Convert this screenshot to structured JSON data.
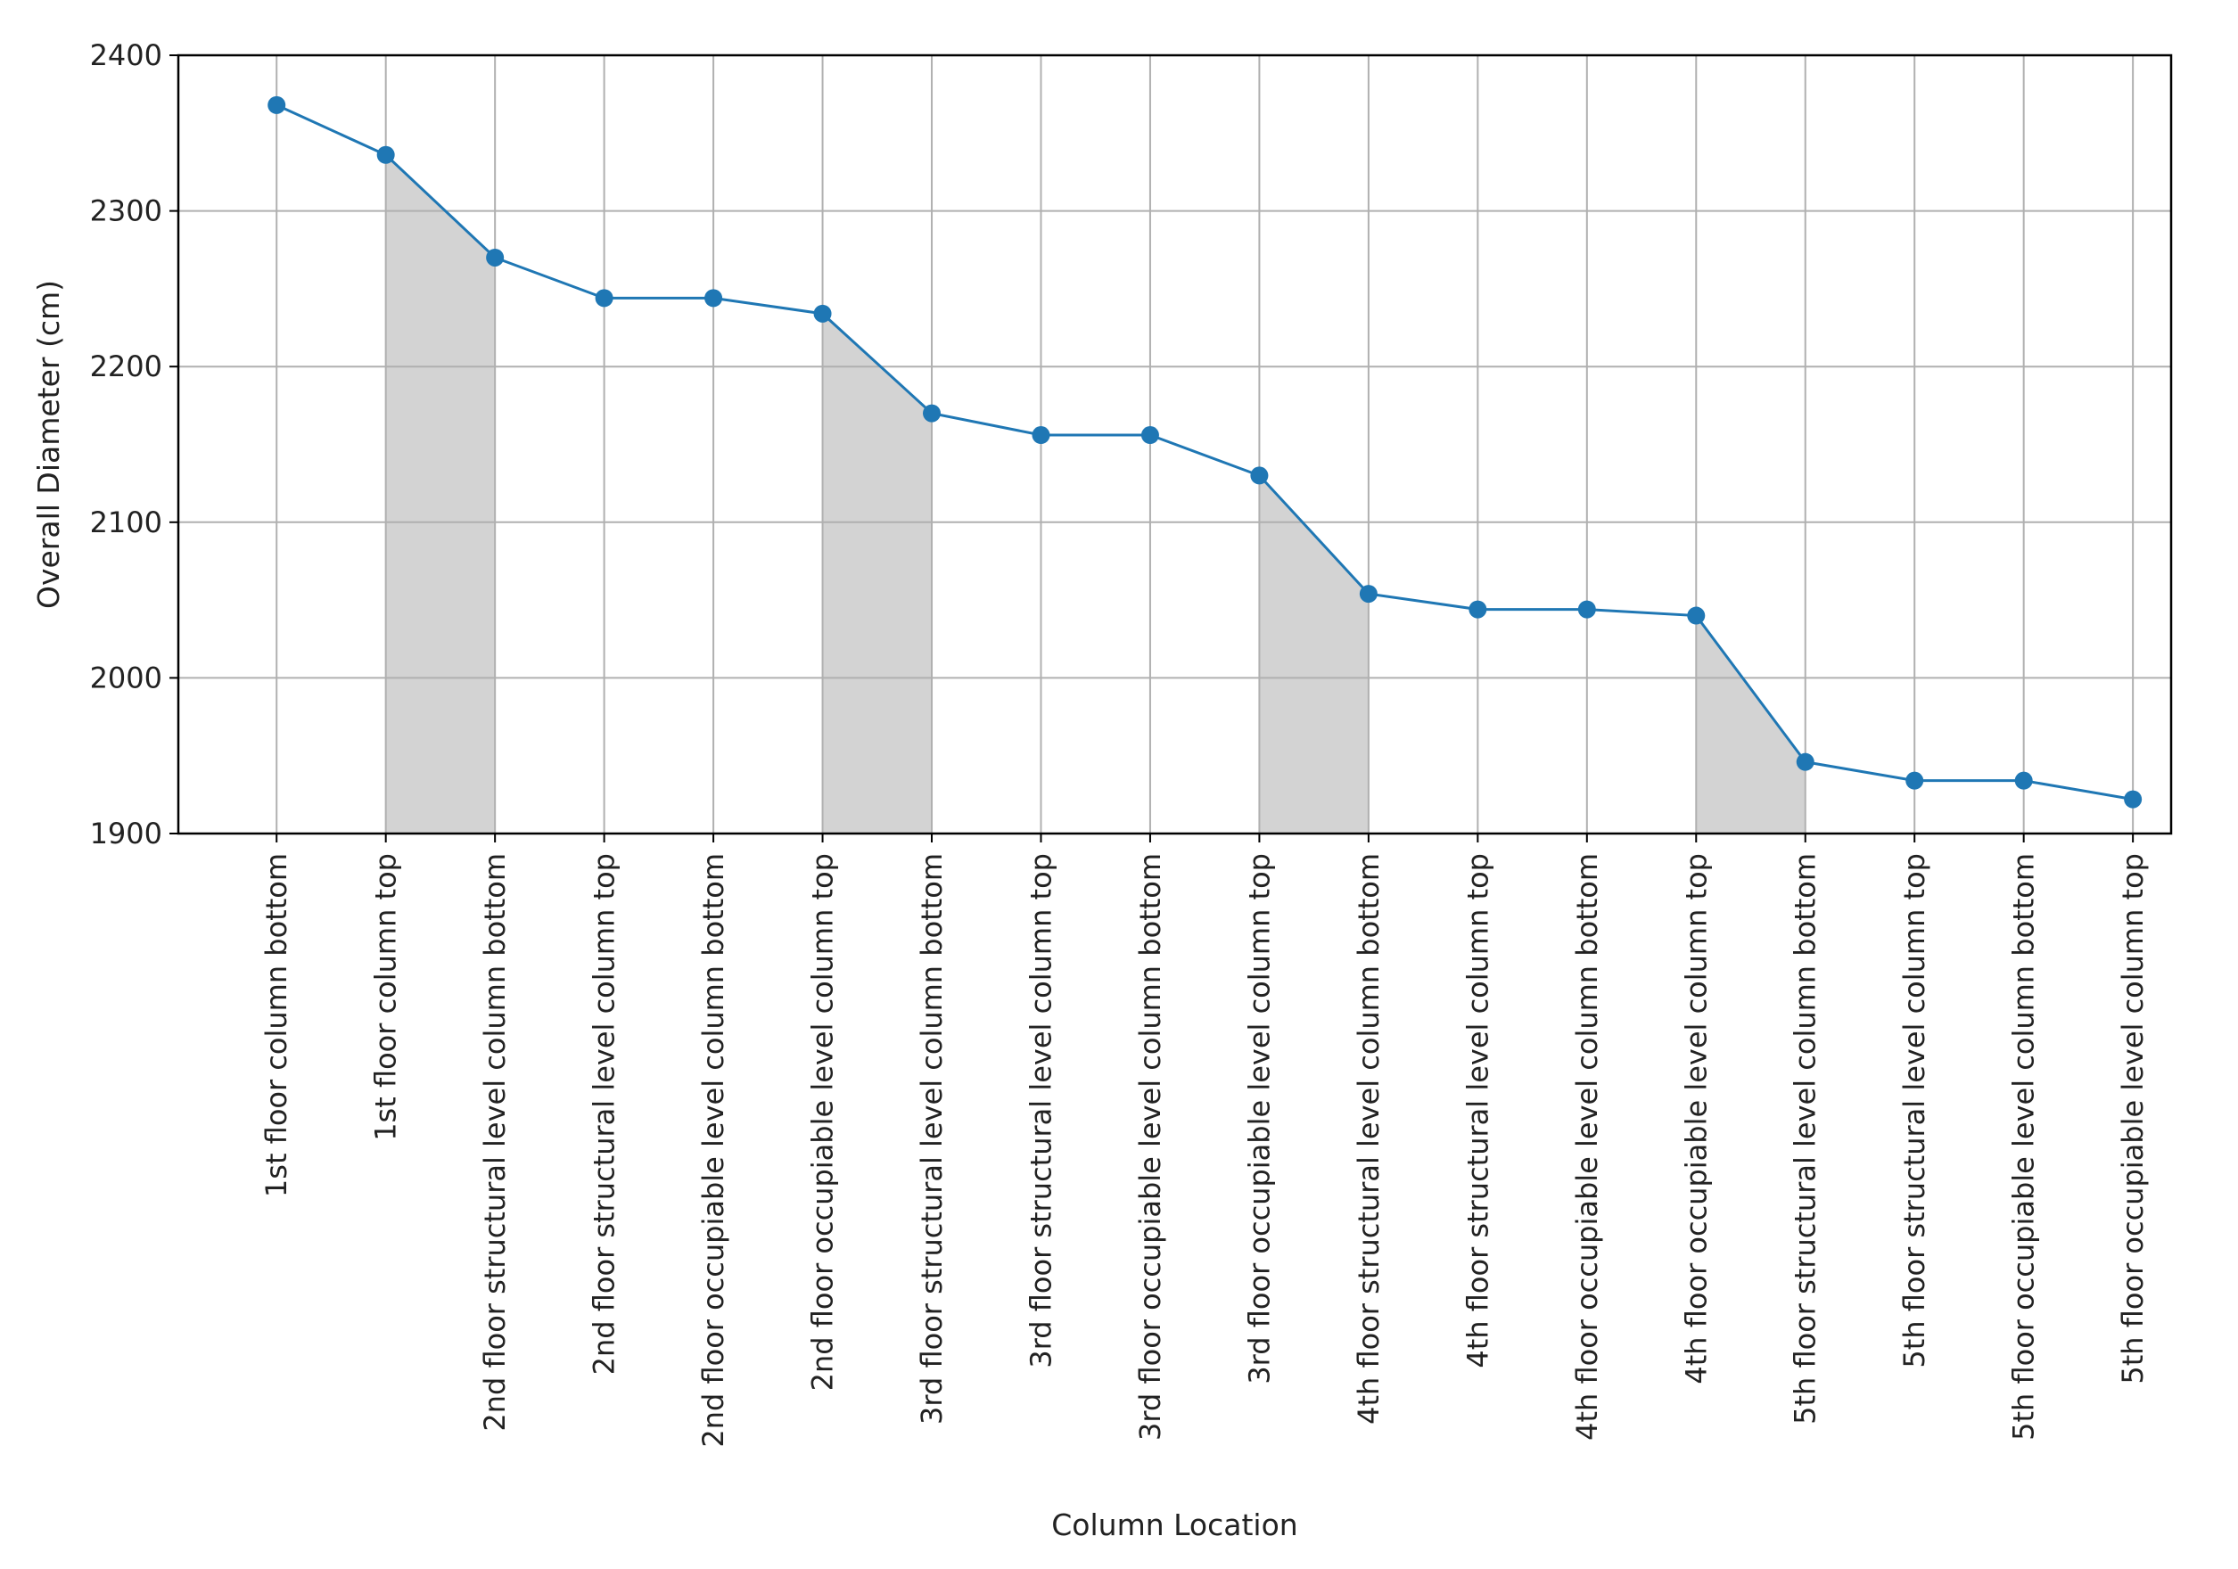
{
  "chart_data": {
    "type": "line",
    "title": "",
    "xlabel": "Column Location",
    "ylabel": "Overall Diameter (cm)",
    "ylim": [
      1900,
      2400
    ],
    "yticks": [
      1900,
      2000,
      2100,
      2200,
      2300,
      2400
    ],
    "grid": true,
    "categories": [
      "1st floor column bottom",
      "1st floor column top",
      "2nd floor structural level column bottom",
      "2nd floor structural level column top",
      "2nd floor occupiable level column bottom",
      "2nd floor occupiable level column top",
      "3rd floor structural level column bottom",
      "3rd floor structural level column top",
      "3rd floor occupiable level column bottom",
      "3rd floor occupiable level column top",
      "4th floor structural level column bottom",
      "4th floor structural level column top",
      "4th floor occupiable level column bottom",
      "4th floor occupiable level column top",
      "5th floor structural level column bottom",
      "5th floor structural level column top",
      "5th floor occupiable level column bottom",
      "5th floor occupiable level column top"
    ],
    "series": [
      {
        "values": [
          2368,
          2336,
          2270,
          2244,
          2244,
          2234,
          2170,
          2156,
          2156,
          2130,
          2054,
          2044,
          2044,
          2040,
          1946,
          1934,
          1934,
          1922
        ],
        "color": "#1f77b4"
      }
    ],
    "shaded_spans": [
      [
        1,
        2
      ],
      [
        5,
        6
      ],
      [
        9,
        10
      ],
      [
        13,
        14
      ]
    ],
    "shade_color": "#d3d3d3"
  }
}
